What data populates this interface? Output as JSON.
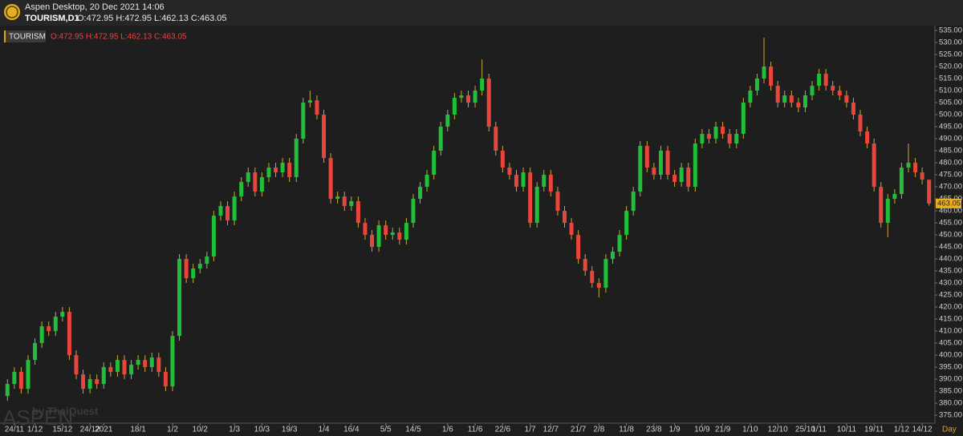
{
  "chart_data": {
    "type": "candlestick",
    "title": "Aspen Desktop, 20 Dec 2021 14:06",
    "symbol": "TOURISM,D1",
    "ohlc_text": "O:472.95 H:472.95 L:462.13 C:463.05",
    "legend_name": "TOURISM",
    "watermark": "ASPEN",
    "watermark_sub": "by ThaiQuest",
    "x_label": "Day",
    "price_tag": "463.05",
    "up_color": "#1fbf3a",
    "down_color": "#e8453c",
    "wick_color": "#c9a53a",
    "categories": [
      null,
      "24/11",
      null,
      null,
      "1/12",
      null,
      null,
      null,
      "15/12",
      null,
      null,
      null,
      "24/12",
      null,
      "2021",
      null,
      null,
      null,
      null,
      "18/1",
      null,
      null,
      null,
      null,
      "1/2",
      null,
      null,
      null,
      "10/2",
      null,
      null,
      null,
      null,
      "1/3",
      null,
      null,
      null,
      "10/3",
      null,
      null,
      null,
      "19/3",
      null,
      null,
      null,
      null,
      "1/4",
      null,
      null,
      null,
      "16/4",
      null,
      null,
      null,
      null,
      "5/5",
      null,
      null,
      null,
      "14/5",
      null,
      null,
      null,
      null,
      "1/6",
      null,
      null,
      null,
      "11/6",
      null,
      null,
      null,
      "22/6",
      null,
      null,
      null,
      "1/7",
      null,
      null,
      "12/7",
      null,
      null,
      null,
      "21/7",
      null,
      null,
      "2/8",
      null,
      null,
      null,
      "11/8",
      null,
      null,
      null,
      "23/8",
      null,
      null,
      "1/9",
      null,
      null,
      null,
      "10/9",
      null,
      null,
      "21/9",
      null,
      null,
      null,
      "1/10",
      null,
      null,
      null,
      "12/10",
      null,
      null,
      null,
      "25/10",
      null,
      "1/11",
      null,
      null,
      null,
      "10/11",
      null,
      null,
      null,
      "19/11",
      null,
      null,
      null,
      "1/12",
      null,
      null,
      "14/12",
      null
    ],
    "open": [
      383,
      388,
      393,
      386,
      398,
      405,
      412,
      410,
      416,
      418,
      400,
      392,
      386,
      390,
      388,
      395,
      393,
      398,
      392,
      396,
      398,
      395,
      399,
      393,
      387,
      408,
      440,
      432,
      436,
      438,
      441,
      458,
      462,
      456,
      466,
      472,
      476,
      468,
      474,
      478,
      476,
      480,
      474,
      490,
      505,
      506,
      500,
      482,
      465,
      466,
      462,
      464,
      455,
      450,
      445,
      454,
      450,
      451,
      448,
      455,
      465,
      470,
      475,
      485,
      495,
      500,
      507,
      508,
      505,
      510,
      515,
      495,
      485,
      478,
      475,
      470,
      476,
      455,
      470,
      475,
      468,
      460,
      455,
      450,
      440,
      435,
      430,
      428,
      440,
      443,
      450,
      460,
      468,
      487,
      478,
      475,
      485,
      475,
      472,
      478,
      470,
      488,
      492,
      490,
      495,
      492,
      488,
      492,
      505,
      510,
      515,
      520,
      512,
      505,
      508,
      505,
      503,
      508,
      512,
      517,
      512,
      510,
      508,
      505,
      500,
      493,
      488,
      470,
      455,
      465,
      467,
      478,
      480,
      476,
      472.95
    ],
    "high": [
      390,
      395,
      395,
      400,
      407,
      414,
      414,
      418,
      420,
      420,
      402,
      394,
      392,
      392,
      397,
      397,
      400,
      400,
      398,
      400,
      400,
      401,
      401,
      395,
      410,
      442,
      442,
      438,
      440,
      443,
      460,
      464,
      464,
      468,
      474,
      478,
      478,
      476,
      480,
      480,
      482,
      482,
      492,
      507,
      510,
      508,
      502,
      484,
      468,
      468,
      466,
      466,
      457,
      452,
      456,
      456,
      453,
      453,
      457,
      467,
      472,
      477,
      487,
      497,
      502,
      509,
      510,
      510,
      512,
      523,
      517,
      497,
      487,
      480,
      477,
      478,
      478,
      472,
      477,
      477,
      470,
      462,
      457,
      452,
      442,
      437,
      432,
      442,
      445,
      452,
      462,
      470,
      489,
      489,
      480,
      487,
      487,
      477,
      480,
      480,
      490,
      494,
      494,
      497,
      497,
      494,
      494,
      507,
      512,
      517,
      532,
      522,
      514,
      510,
      510,
      507,
      510,
      514,
      519,
      519,
      514,
      512,
      510,
      507,
      502,
      495,
      490,
      472,
      467,
      469,
      480,
      488,
      482,
      478,
      472.95
    ],
    "low": [
      381,
      386,
      384,
      384,
      396,
      403,
      408,
      408,
      414,
      398,
      390,
      384,
      384,
      386,
      386,
      391,
      391,
      390,
      390,
      394,
      393,
      393,
      391,
      385,
      385,
      406,
      430,
      430,
      434,
      436,
      439,
      456,
      454,
      454,
      464,
      470,
      466,
      466,
      472,
      474,
      474,
      472,
      472,
      488,
      503,
      498,
      480,
      463,
      463,
      460,
      460,
      453,
      448,
      443,
      443,
      448,
      448,
      446,
      446,
      453,
      463,
      468,
      473,
      483,
      493,
      498,
      505,
      503,
      503,
      508,
      493,
      483,
      476,
      473,
      468,
      468,
      453,
      453,
      468,
      466,
      458,
      453,
      448,
      438,
      433,
      428,
      424,
      426,
      438,
      441,
      448,
      458,
      466,
      476,
      473,
      473,
      473,
      470,
      470,
      468,
      468,
      486,
      488,
      488,
      490,
      486,
      486,
      490,
      503,
      508,
      513,
      510,
      503,
      503,
      503,
      501,
      501,
      506,
      510,
      510,
      508,
      506,
      503,
      498,
      491,
      486,
      468,
      453,
      449,
      463,
      465,
      476,
      474,
      471,
      462.13
    ],
    "close": [
      388,
      393,
      386,
      398,
      405,
      412,
      410,
      416,
      418,
      400,
      392,
      386,
      390,
      388,
      395,
      393,
      398,
      392,
      396,
      398,
      395,
      399,
      393,
      387,
      408,
      440,
      432,
      436,
      438,
      441,
      458,
      462,
      456,
      466,
      472,
      476,
      468,
      474,
      478,
      476,
      480,
      474,
      490,
      505,
      506,
      500,
      482,
      465,
      466,
      462,
      464,
      455,
      450,
      445,
      454,
      450,
      451,
      448,
      455,
      465,
      470,
      475,
      485,
      495,
      500,
      507,
      508,
      505,
      510,
      515,
      495,
      485,
      478,
      475,
      470,
      476,
      455,
      470,
      475,
      468,
      460,
      455,
      450,
      440,
      435,
      430,
      428,
      440,
      443,
      450,
      460,
      468,
      487,
      478,
      475,
      485,
      475,
      472,
      478,
      470,
      488,
      492,
      490,
      495,
      492,
      488,
      492,
      505,
      510,
      515,
      520,
      512,
      505,
      508,
      505,
      503,
      508,
      512,
      517,
      512,
      510,
      508,
      505,
      500,
      493,
      488,
      470,
      455,
      465,
      467,
      478,
      480,
      476,
      473,
      463.05
    ],
    "ylim": [
      371.7,
      537
    ],
    "yticks": [
      {
        "value": 375,
        "label": "375.00"
      },
      {
        "value": 380,
        "label": "380.00"
      },
      {
        "value": 385,
        "label": "385.00"
      },
      {
        "value": 390,
        "label": "390.00"
      },
      {
        "value": 395,
        "label": "395.00"
      },
      {
        "value": 400,
        "label": "400.00"
      },
      {
        "value": 405,
        "label": "405.00"
      },
      {
        "value": 410,
        "label": "410.00"
      },
      {
        "value": 415,
        "label": "415.00"
      },
      {
        "value": 420,
        "label": "420.00"
      },
      {
        "value": 425,
        "label": "425.00"
      },
      {
        "value": 430,
        "label": "430.00"
      },
      {
        "value": 435,
        "label": "435.00"
      },
      {
        "value": 440,
        "label": "440.00"
      },
      {
        "value": 445,
        "label": "445.00"
      },
      {
        "value": 450,
        "label": "450.00"
      },
      {
        "value": 455,
        "label": "455.00"
      },
      {
        "value": 460,
        "label": "460.00"
      },
      {
        "value": 465,
        "label": "465.00"
      },
      {
        "value": 470,
        "label": "470.00"
      },
      {
        "value": 475,
        "label": "475.00"
      },
      {
        "value": 480,
        "label": "480.00"
      },
      {
        "value": 485,
        "label": "485.00"
      },
      {
        "value": 490,
        "label": "490.00"
      },
      {
        "value": 495,
        "label": "495.00"
      },
      {
        "value": 500,
        "label": "500.00"
      },
      {
        "value": 505,
        "label": "505.00"
      },
      {
        "value": 510,
        "label": "510.00"
      },
      {
        "value": 515,
        "label": "515.00"
      },
      {
        "value": 520,
        "label": "520.00"
      },
      {
        "value": 525,
        "label": "525.00"
      },
      {
        "value": 530,
        "label": "530.00"
      },
      {
        "value": 535,
        "label": "535.00"
      }
    ]
  }
}
